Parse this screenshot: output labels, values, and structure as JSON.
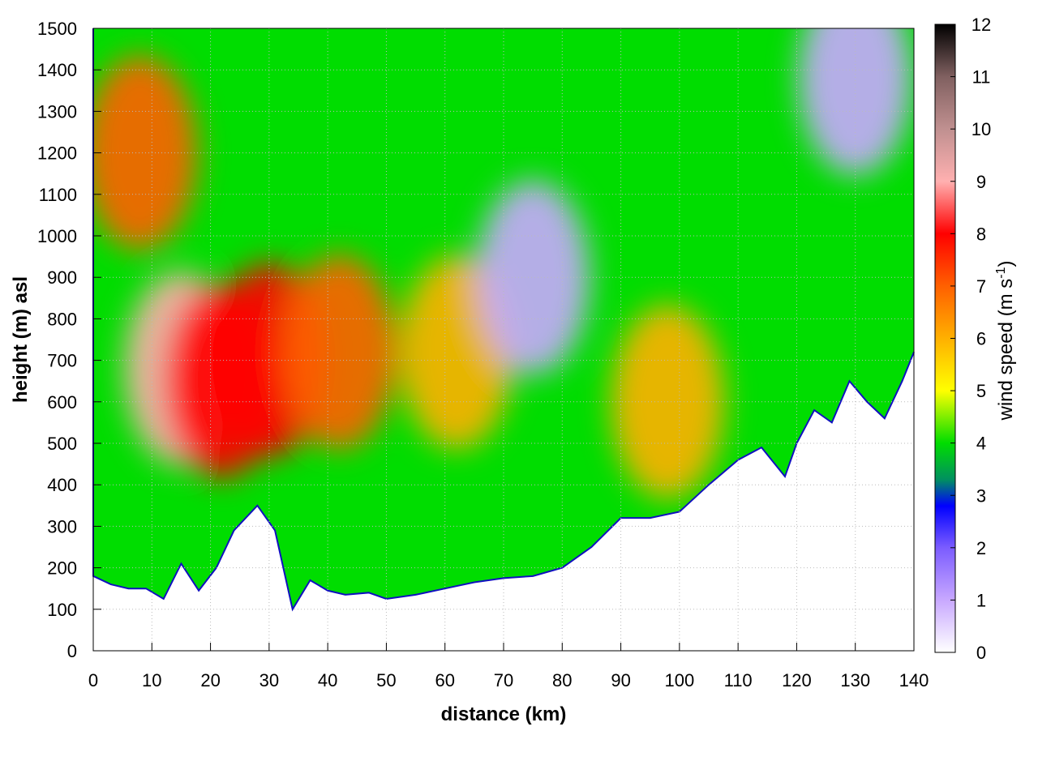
{
  "chart_data": {
    "type": "heatmap",
    "title": "",
    "xlabel": "distance (km)",
    "ylabel": "height (m) asl",
    "xlim": [
      0,
      140
    ],
    "ylim": [
      0,
      1500
    ],
    "x_ticks": [
      "0",
      "10",
      "20",
      "30",
      "40",
      "50",
      "60",
      "70",
      "80",
      "90",
      "100",
      "110",
      "120",
      "130",
      "140"
    ],
    "y_ticks": [
      "0",
      "100",
      "200",
      "300",
      "400",
      "500",
      "600",
      "700",
      "800",
      "900",
      "1000",
      "1100",
      "1200",
      "1300",
      "1400",
      "1500"
    ],
    "grid": true,
    "colorbar": {
      "label": "wind speed (m s",
      "label_superscript": "-1",
      "label_close": ")",
      "range": [
        0,
        12
      ],
      "ticks": [
        "0",
        "1",
        "2",
        "3",
        "4",
        "5",
        "6",
        "7",
        "8",
        "9",
        "10",
        "11",
        "12"
      ],
      "colors": [
        {
          "value": 0,
          "color": "#ffffff"
        },
        {
          "value": 1,
          "color": "#c8a8ff"
        },
        {
          "value": 2,
          "color": "#7b5cff"
        },
        {
          "value": 2.8,
          "color": "#0000ff"
        },
        {
          "value": 3.3,
          "color": "#009060"
        },
        {
          "value": 4,
          "color": "#00dd00"
        },
        {
          "value": 5,
          "color": "#ffff00"
        },
        {
          "value": 6,
          "color": "#ffb000"
        },
        {
          "value": 7,
          "color": "#ff6000"
        },
        {
          "value": 8,
          "color": "#ff0000"
        },
        {
          "value": 9,
          "color": "#ffb0b0"
        },
        {
          "value": 10,
          "color": "#c09090"
        },
        {
          "value": 11,
          "color": "#806060"
        },
        {
          "value": 12,
          "color": "#000000"
        }
      ]
    },
    "terrain_height": [
      {
        "x": 0,
        "y": 180
      },
      {
        "x": 3,
        "y": 160
      },
      {
        "x": 6,
        "y": 150
      },
      {
        "x": 9,
        "y": 150
      },
      {
        "x": 12,
        "y": 125
      },
      {
        "x": 15,
        "y": 210
      },
      {
        "x": 18,
        "y": 145
      },
      {
        "x": 21,
        "y": 200
      },
      {
        "x": 24,
        "y": 290
      },
      {
        "x": 28,
        "y": 350
      },
      {
        "x": 31,
        "y": 290
      },
      {
        "x": 34,
        "y": 100
      },
      {
        "x": 37,
        "y": 170
      },
      {
        "x": 40,
        "y": 145
      },
      {
        "x": 43,
        "y": 135
      },
      {
        "x": 47,
        "y": 140
      },
      {
        "x": 50,
        "y": 125
      },
      {
        "x": 55,
        "y": 135
      },
      {
        "x": 60,
        "y": 150
      },
      {
        "x": 65,
        "y": 165
      },
      {
        "x": 70,
        "y": 175
      },
      {
        "x": 75,
        "y": 180
      },
      {
        "x": 80,
        "y": 200
      },
      {
        "x": 85,
        "y": 250
      },
      {
        "x": 90,
        "y": 320
      },
      {
        "x": 95,
        "y": 320
      },
      {
        "x": 100,
        "y": 335
      },
      {
        "x": 105,
        "y": 400
      },
      {
        "x": 110,
        "y": 460
      },
      {
        "x": 114,
        "y": 490
      },
      {
        "x": 118,
        "y": 420
      },
      {
        "x": 120,
        "y": 500
      },
      {
        "x": 123,
        "y": 580
      },
      {
        "x": 126,
        "y": 550
      },
      {
        "x": 129,
        "y": 650
      },
      {
        "x": 132,
        "y": 600
      },
      {
        "x": 135,
        "y": 560
      },
      {
        "x": 138,
        "y": 650
      },
      {
        "x": 140,
        "y": 720
      }
    ],
    "wind_maxima": [
      {
        "x": 15,
        "y": 680,
        "value": 9
      },
      {
        "x": 22,
        "y": 650,
        "value": 8
      },
      {
        "x": 30,
        "y": 700,
        "value": 7.5
      },
      {
        "x": 42,
        "y": 720,
        "value": 7
      },
      {
        "x": 8,
        "y": 1200,
        "value": 6.5
      },
      {
        "x": 62,
        "y": 720,
        "value": 5.5
      },
      {
        "x": 98,
        "y": 600,
        "value": 5.5
      },
      {
        "x": 75,
        "y": 900,
        "value": 1
      },
      {
        "x": 130,
        "y": 1380,
        "value": 0.5
      }
    ]
  }
}
